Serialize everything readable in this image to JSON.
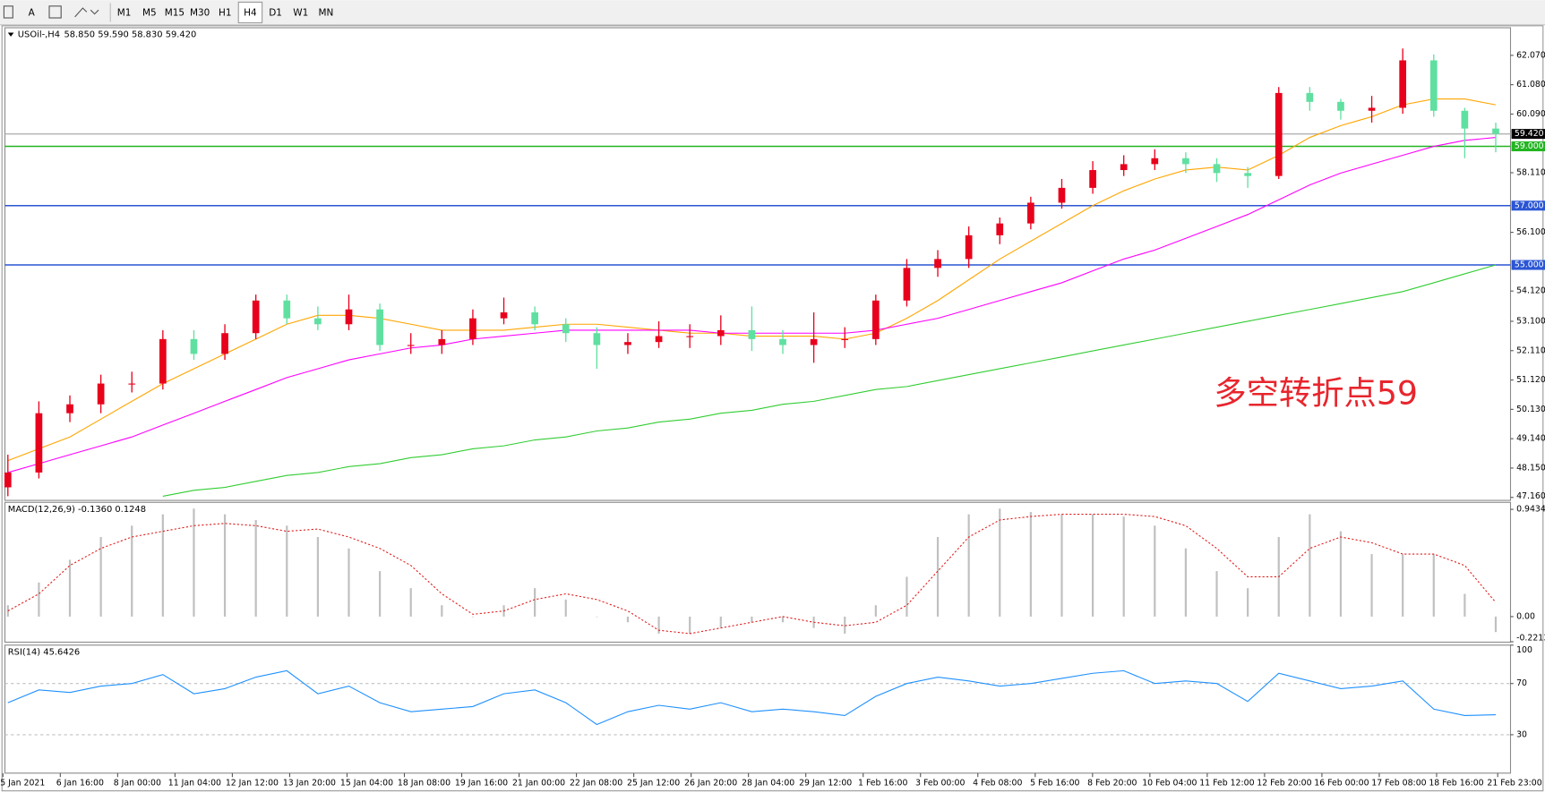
{
  "toolbar": {
    "tools": [
      "A"
    ],
    "timeframes": [
      "M1",
      "M5",
      "M15",
      "M30",
      "H1",
      "H4",
      "D1",
      "W1",
      "MN"
    ],
    "active": "H4"
  },
  "chart_data": [
    {
      "type": "candlestick",
      "title": "USOil-,H4",
      "subtitle": "58.850 59.590 58.830 59.420",
      "annotation": "多空转折点59",
      "annotation_color": "#e8252d",
      "up_color": "#e8001c",
      "down_color": "#5fe0a0",
      "ylim": [
        47.06,
        63.0
      ],
      "yticks": [
        {
          "value": 47.16,
          "label": "47.160"
        },
        {
          "value": 48.15,
          "label": "48.150"
        },
        {
          "value": 49.14,
          "label": "49.140"
        },
        {
          "value": 50.13,
          "label": "50.130"
        },
        {
          "value": 51.12,
          "label": "51.120"
        },
        {
          "value": 52.11,
          "label": "52.110"
        },
        {
          "value": 53.1,
          "label": "53.100"
        },
        {
          "value": 54.12,
          "label": "54.120"
        },
        {
          "value": 56.1,
          "label": "56.100"
        },
        {
          "value": 58.11,
          "label": "58.110"
        },
        {
          "value": 60.09,
          "label": "60.090"
        },
        {
          "value": 61.08,
          "label": "61.080"
        },
        {
          "value": 62.07,
          "label": "62.070"
        }
      ],
      "levels": [
        {
          "value": 59.42,
          "label": "59.420",
          "color": "#b4b4b4",
          "label_fill": "#000000"
        },
        {
          "value": 59.0,
          "label": "59.000",
          "color": "#22b522",
          "label_fill": "#22b522"
        },
        {
          "value": 57.0,
          "label": "57.000",
          "color": "#2a55d4",
          "label_fill": "#2a55d4"
        },
        {
          "value": 55.0,
          "label": "55.000",
          "color": "#2a55d4",
          "label_fill": "#2a55d4"
        }
      ],
      "open": [
        47.5,
        48.0,
        50.0,
        50.3,
        51.0,
        51.0,
        52.5,
        52.0,
        52.7,
        53.8,
        53.2,
        53.0,
        53.5,
        52.3,
        52.3,
        52.5,
        53.2,
        53.4,
        53.0,
        52.7,
        52.3,
        52.4,
        52.6,
        52.6,
        52.8,
        52.5,
        52.3,
        52.5,
        52.5,
        53.8,
        54.9,
        55.2,
        56.0,
        56.4,
        57.1,
        57.6,
        58.2,
        58.4,
        58.6,
        58.4,
        58.1,
        58.0,
        60.8,
        60.5,
        60.2,
        60.3,
        61.9,
        60.2,
        59.6
      ],
      "high": [
        48.6,
        50.4,
        50.6,
        51.3,
        51.4,
        52.8,
        52.8,
        53.0,
        54.0,
        54.0,
        53.6,
        54.0,
        53.7,
        52.7,
        52.8,
        53.5,
        53.9,
        53.6,
        53.2,
        52.9,
        52.7,
        53.1,
        53.0,
        53.3,
        53.6,
        52.8,
        53.4,
        52.9,
        54.0,
        55.2,
        55.5,
        56.3,
        56.6,
        57.3,
        57.9,
        58.5,
        58.7,
        58.9,
        58.8,
        58.6,
        58.3,
        61.0,
        61.0,
        60.6,
        60.7,
        62.3,
        62.1,
        60.3,
        59.8
      ],
      "low": [
        47.2,
        47.8,
        49.7,
        50.0,
        50.7,
        50.8,
        51.8,
        51.8,
        52.5,
        53.0,
        52.8,
        52.8,
        52.1,
        52.0,
        52.0,
        52.3,
        53.0,
        52.8,
        52.4,
        51.5,
        52.0,
        52.2,
        52.2,
        52.3,
        52.1,
        52.0,
        51.7,
        52.2,
        52.3,
        53.6,
        54.6,
        54.9,
        55.7,
        56.2,
        56.9,
        57.4,
        58.0,
        58.2,
        58.1,
        57.8,
        57.6,
        57.9,
        60.2,
        59.9,
        59.8,
        60.1,
        60.0,
        58.6,
        58.8
      ],
      "close": [
        48.0,
        50.0,
        50.3,
        51.0,
        51.0,
        52.5,
        52.0,
        52.7,
        53.8,
        53.2,
        53.0,
        53.5,
        52.3,
        52.3,
        52.5,
        53.2,
        53.4,
        53.0,
        52.7,
        52.3,
        52.4,
        52.6,
        52.6,
        52.8,
        52.5,
        52.3,
        52.5,
        52.5,
        53.8,
        54.9,
        55.2,
        56.0,
        56.4,
        57.1,
        57.6,
        58.2,
        58.4,
        58.6,
        58.4,
        58.1,
        58.0,
        60.8,
        60.5,
        60.2,
        60.3,
        61.9,
        60.2,
        59.6,
        59.42
      ],
      "series": [
        {
          "color": "#ffa500",
          "values": [
            48.4,
            48.8,
            49.2,
            49.8,
            50.4,
            51.0,
            51.5,
            52.0,
            52.5,
            53.0,
            53.3,
            53.3,
            53.2,
            53.0,
            52.8,
            52.8,
            52.8,
            52.9,
            53.0,
            53.0,
            52.9,
            52.8,
            52.7,
            52.7,
            52.6,
            52.6,
            52.6,
            52.5,
            52.7,
            53.2,
            53.8,
            54.5,
            55.2,
            55.8,
            56.4,
            57.0,
            57.5,
            57.9,
            58.2,
            58.3,
            58.2,
            58.7,
            59.3,
            59.7,
            60.0,
            60.4,
            60.6,
            60.6,
            60.4
          ]
        },
        {
          "color": "#ff00ff",
          "values": [
            48.0,
            48.3,
            48.6,
            48.9,
            49.2,
            49.6,
            50.0,
            50.4,
            50.8,
            51.2,
            51.5,
            51.8,
            52.0,
            52.2,
            52.3,
            52.5,
            52.6,
            52.7,
            52.8,
            52.8,
            52.8,
            52.8,
            52.8,
            52.7,
            52.7,
            52.7,
            52.7,
            52.7,
            52.8,
            53.0,
            53.2,
            53.5,
            53.8,
            54.1,
            54.4,
            54.8,
            55.2,
            55.5,
            55.9,
            56.3,
            56.7,
            57.2,
            57.7,
            58.1,
            58.4,
            58.7,
            59.0,
            59.2,
            59.3
          ]
        },
        {
          "color": "#32cd32",
          "values": [
            null,
            null,
            null,
            null,
            null,
            47.2,
            47.4,
            47.5,
            47.7,
            47.9,
            48.0,
            48.2,
            48.3,
            48.5,
            48.6,
            48.8,
            48.9,
            49.1,
            49.2,
            49.4,
            49.5,
            49.7,
            49.8,
            50.0,
            50.1,
            50.3,
            50.4,
            50.6,
            50.8,
            50.9,
            51.1,
            51.3,
            51.5,
            51.7,
            51.9,
            52.1,
            52.3,
            52.5,
            52.7,
            52.9,
            53.1,
            53.3,
            53.5,
            53.7,
            53.9,
            54.1,
            54.4,
            54.7,
            55.0
          ]
        }
      ]
    },
    {
      "type": "macd",
      "title": "MACD(12,26,9) -0.1360 0.1248",
      "ylim": [
        -0.225,
        1.005
      ],
      "yticks": [
        0.9434,
        {
          "value": 0,
          "label": "0.00"
        },
        -0.2213
      ],
      "histogram": {
        "color": "#c0c0c0",
        "values": [
          0.1,
          0.3,
          0.5,
          0.7,
          0.8,
          0.9,
          0.95,
          0.9,
          0.85,
          0.8,
          0.7,
          0.6,
          0.4,
          0.25,
          0.1,
          0.0,
          0.1,
          0.25,
          0.15,
          0.0,
          -0.05,
          -0.15,
          -0.15,
          -0.1,
          -0.05,
          -0.05,
          -0.1,
          -0.15,
          0.1,
          0.35,
          0.7,
          0.9,
          0.95,
          0.92,
          0.9,
          0.9,
          0.88,
          0.8,
          0.6,
          0.4,
          0.25,
          0.7,
          0.9,
          0.75,
          0.55,
          0.55,
          0.55,
          0.2,
          -0.136
        ]
      },
      "signal": {
        "color": "#e02020",
        "values": [
          0.05,
          0.2,
          0.45,
          0.6,
          0.7,
          0.75,
          0.8,
          0.82,
          0.8,
          0.75,
          0.77,
          0.7,
          0.6,
          0.45,
          0.2,
          0.02,
          0.05,
          0.15,
          0.2,
          0.15,
          0.05,
          -0.12,
          -0.15,
          -0.1,
          -0.05,
          0.0,
          -0.05,
          -0.08,
          -0.05,
          0.1,
          0.4,
          0.7,
          0.85,
          0.88,
          0.9,
          0.9,
          0.9,
          0.88,
          0.8,
          0.6,
          0.35,
          0.35,
          0.6,
          0.7,
          0.65,
          0.55,
          0.55,
          0.45,
          0.1248
        ]
      }
    },
    {
      "type": "line",
      "title": "RSI(14) 45.6426",
      "ylim": [
        0,
        100
      ],
      "yticks": [
        100,
        70,
        30
      ],
      "grid": true,
      "color": "#1e90ff",
      "values": [
        55,
        65,
        63,
        68,
        70,
        77,
        62,
        66,
        75,
        80,
        62,
        68,
        55,
        48,
        50,
        52,
        62,
        65,
        55,
        38,
        48,
        53,
        50,
        55,
        48,
        50,
        48,
        45,
        60,
        70,
        75,
        72,
        68,
        70,
        74,
        78,
        80,
        70,
        72,
        70,
        56,
        78,
        72,
        66,
        68,
        72,
        50,
        45,
        45.6426
      ],
      "x_labels": [
        "5 Jan 2021",
        "6 Jan 16:00",
        "8 Jan 00:00",
        "11 Jan 04:00",
        "12 Jan 12:00",
        "13 Jan 20:00",
        "15 Jan 04:00",
        "18 Jan 08:00",
        "19 Jan 16:00",
        "21 Jan 00:00",
        "22 Jan 08:00",
        "25 Jan 12:00",
        "26 Jan 20:00",
        "28 Jan 04:00",
        "29 Jan 12:00",
        "1 Feb 16:00",
        "3 Feb 00:00",
        "4 Feb 08:00",
        "5 Feb 16:00",
        "8 Feb 20:00",
        "10 Feb 04:00",
        "11 Feb 12:00",
        "12 Feb 20:00",
        "16 Feb 00:00",
        "17 Feb 08:00",
        "18 Feb 16:00",
        "21 Feb 23:00"
      ]
    }
  ]
}
